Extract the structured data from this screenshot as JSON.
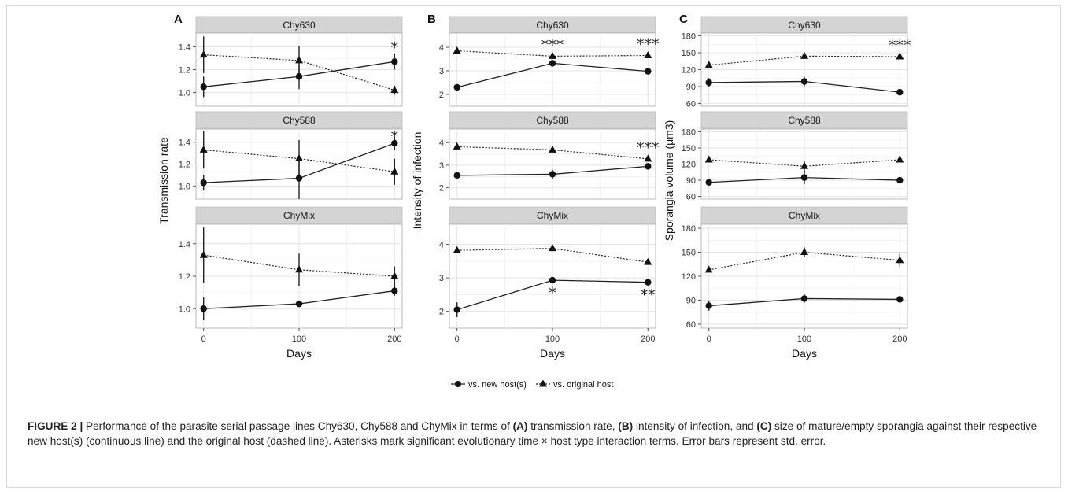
{
  "chart_data": [
    {
      "type": "line",
      "panel_label": "A",
      "ylabel": "Transmission rate",
      "xlabel": "Days",
      "x": [
        0,
        100,
        200
      ],
      "xlim": [
        -8,
        208
      ],
      "x_ticks": [
        0,
        100,
        200
      ],
      "ylim": [
        0.88,
        1.52
      ],
      "y_ticks": [
        1.0,
        1.2,
        1.4
      ],
      "y_tick_labels": [
        "1.0",
        "1.2",
        "1.4"
      ],
      "facets": [
        {
          "strip": "Chy630",
          "new": [
            1.05,
            1.14,
            1.27
          ],
          "new_err": [
            0.09,
            0.11,
            0.07
          ],
          "orig": [
            1.33,
            1.28,
            1.02
          ],
          "orig_err": [
            0.16,
            0.13,
            0.04
          ],
          "annotations": [
            {
              "x": 200,
              "text": "*"
            }
          ]
        },
        {
          "strip": "Chy588",
          "new": [
            1.03,
            1.07,
            1.39
          ],
          "new_err": [
            0.07,
            0.19,
            0.06
          ],
          "orig": [
            1.33,
            1.25,
            1.13
          ],
          "orig_err": [
            0.17,
            0.17,
            0.12
          ],
          "annotations": [
            {
              "x": 200,
              "text": "*"
            }
          ]
        },
        {
          "strip": "ChyMix",
          "new": [
            1.0,
            1.03,
            1.11
          ],
          "new_err": [
            0.07,
            0.02,
            0.03
          ],
          "orig": [
            1.33,
            1.24,
            1.2
          ],
          "orig_err": [
            0.17,
            0.1,
            0.06
          ],
          "annotations": []
        }
      ]
    },
    {
      "type": "line",
      "panel_label": "B",
      "ylabel": "Intensity of infection",
      "xlabel": "Days",
      "x": [
        0,
        100,
        200
      ],
      "xlim": [
        -8,
        208
      ],
      "x_ticks": [
        0,
        100,
        200
      ],
      "ylim": [
        1.5,
        4.6
      ],
      "y_ticks": [
        2,
        3,
        4
      ],
      "y_tick_labels": [
        "2",
        "3",
        "4"
      ],
      "facets": [
        {
          "strip": "Chy630",
          "new": [
            2.3,
            3.32,
            2.98
          ],
          "new_err": [
            0.05,
            0.12,
            0.08
          ],
          "orig": [
            3.85,
            3.62,
            3.65
          ],
          "orig_err": [
            0.05,
            0.08,
            0.05
          ],
          "annotations": [
            {
              "x": 100,
              "text": "***"
            },
            {
              "x": 200,
              "text": "***"
            }
          ]
        },
        {
          "strip": "Chy588",
          "new": [
            2.55,
            2.6,
            2.95
          ],
          "new_err": [
            0.06,
            0.2,
            0.12
          ],
          "orig": [
            3.82,
            3.68,
            3.28
          ],
          "orig_err": [
            0.05,
            0.06,
            0.1
          ],
          "annotations": [
            {
              "x": 200,
              "text": "***"
            }
          ]
        },
        {
          "strip": "ChyMix",
          "new": [
            2.05,
            2.93,
            2.87
          ],
          "new_err": [
            0.22,
            0.06,
            0.05
          ],
          "orig": [
            3.82,
            3.88,
            3.47
          ],
          "orig_err": [
            0.04,
            0.06,
            0.06
          ],
          "annotations": [
            {
              "x": 100,
              "text": "*",
              "below": true
            },
            {
              "x": 200,
              "text": "**",
              "below": true
            }
          ]
        }
      ]
    },
    {
      "type": "line",
      "panel_label": "C",
      "ylabel": "Sporangia volume (μm3)",
      "xlabel": "Days",
      "x": [
        0,
        100,
        200
      ],
      "xlim": [
        -8,
        208
      ],
      "x_ticks": [
        0,
        100,
        200
      ],
      "ylim": [
        55,
        185
      ],
      "y_ticks": [
        60,
        90,
        120,
        150,
        180
      ],
      "y_tick_labels": [
        "60",
        "90",
        "120",
        "150",
        "180"
      ],
      "facets": [
        {
          "strip": "Chy630",
          "new": [
            97,
            99,
            80
          ],
          "new_err": [
            8,
            8,
            3
          ],
          "orig": [
            128,
            144,
            143
          ],
          "orig_err": [
            3,
            5,
            4
          ],
          "annotations": [
            {
              "x": 200,
              "text": "***"
            }
          ]
        },
        {
          "strip": "Chy588",
          "new": [
            86,
            95,
            90
          ],
          "new_err": [
            3,
            12,
            3
          ],
          "orig": [
            128,
            116,
            128
          ],
          "orig_err": [
            3,
            10,
            3
          ],
          "annotations": []
        },
        {
          "strip": "ChyMix",
          "new": [
            83,
            92,
            91
          ],
          "new_err": [
            6,
            5,
            3
          ],
          "orig": [
            128,
            150,
            140
          ],
          "orig_err": [
            3,
            6,
            8
          ],
          "annotations": []
        }
      ]
    }
  ],
  "legend": {
    "new_label": "vs. new host(s)",
    "orig_label": "vs. original host"
  },
  "caption": {
    "fig_label": "FIGURE 2 |",
    "t1": " Performance of the parasite serial passage lines Chy630, Chy588 and ChyMix in terms of ",
    "b1": "(A)",
    "t2": " transmission rate, ",
    "b2": "(B)",
    "t3": " intensity of infection, and ",
    "b3": "(C)",
    "t4": " size of mature/empty sporangia against their respective new host(s) (continuous line) and the original host (dashed line). Asterisks mark significant evolutionary time × host type interaction terms. Error bars represent std. error."
  }
}
